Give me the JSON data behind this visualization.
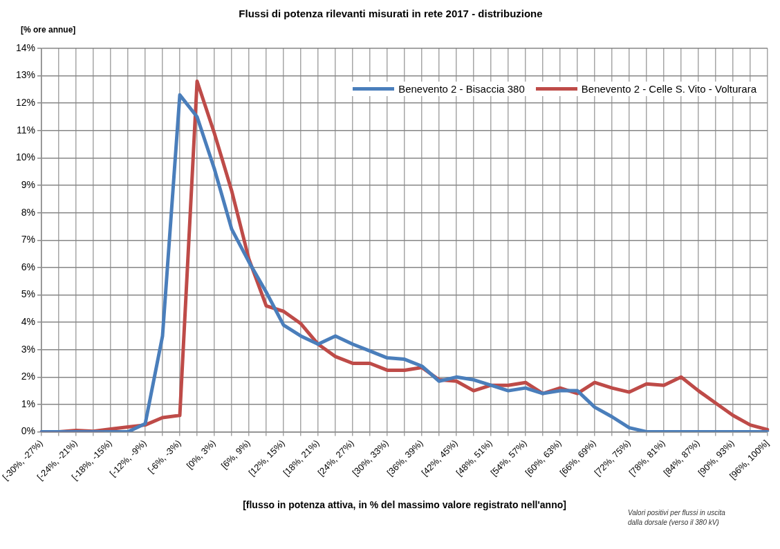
{
  "chart_data": {
    "type": "line",
    "title": "Flussi di potenza rilevanti misurati in rete 2017 - distribuzione",
    "ylabel": "[% ore annue]",
    "xlabel": "[flusso in potenza attiva, in % del massimo valore registrato nell'anno]",
    "annotations": [
      "Valori positivi per flussi in uscita\ndalla dorsale (verso il 380 kV)"
    ],
    "categories": [
      "[-30%, -27%)",
      null,
      "[-24%, -21%)",
      null,
      "[-18%, -15%)",
      null,
      "[-12%, -9%)",
      null,
      "[-6%, -3%)",
      null,
      "[0%, 3%)",
      null,
      "[6%, 9%)",
      null,
      "[12%, 15%)",
      null,
      "[18%, 21%)",
      null,
      "[24%, 27%)",
      null,
      "[30%, 33%)",
      null,
      "[36%, 39%)",
      null,
      "[42%, 45%)",
      null,
      "[48%, 51%)",
      null,
      "[54%, 57%)",
      null,
      "[60%, 63%)",
      null,
      "[66%, 69%)",
      null,
      "[72%, 75%)",
      null,
      "[78%, 81%)",
      null,
      "[84%, 87%)",
      null,
      "[90%, 93%)",
      null,
      "[96%, 100%]"
    ],
    "series": [
      {
        "name": "Benevento 2 - Bisaccia 380",
        "color": "#4a7ebb",
        "values": [
          0,
          0,
          0,
          0,
          0,
          0,
          0.3,
          3.5,
          12.3,
          11.5,
          9.6,
          7.4,
          6.2,
          5.1,
          3.9,
          3.5,
          3.2,
          3.5,
          3.2,
          2.95,
          2.7,
          2.65,
          2.4,
          1.85,
          2.0,
          1.9,
          1.7,
          1.5,
          1.6,
          1.4,
          1.5,
          1.5,
          0.9,
          0.55,
          0.15,
          0,
          0,
          0,
          0,
          0,
          0,
          0,
          0
        ]
      },
      {
        "name": "Benevento 2 - Celle S. Vito - Volturara",
        "color": "#be4b48",
        "values": [
          0,
          0,
          0.05,
          0.02,
          0.1,
          0.18,
          0.25,
          0.52,
          0.6,
          12.8,
          10.9,
          8.8,
          6.3,
          4.6,
          4.4,
          3.95,
          3.2,
          2.75,
          2.5,
          2.5,
          2.25,
          2.25,
          2.35,
          1.9,
          1.85,
          1.5,
          1.7,
          1.7,
          1.8,
          1.4,
          1.6,
          1.4,
          1.8,
          1.6,
          1.45,
          1.75,
          1.7,
          2.0,
          1.5,
          1.05,
          0.6,
          0.25,
          0.08
        ]
      }
    ],
    "ylim": [
      0,
      14
    ],
    "yticks": [
      {
        "value": 0,
        "label": "0%"
      },
      {
        "value": 1,
        "label": "1%"
      },
      {
        "value": 2,
        "label": "2%"
      },
      {
        "value": 3,
        "label": "3%"
      },
      {
        "value": 4,
        "label": "4%"
      },
      {
        "value": 5,
        "label": "5%"
      },
      {
        "value": 6,
        "label": "6%"
      },
      {
        "value": 7,
        "label": "7%"
      },
      {
        "value": 8,
        "label": "8%"
      },
      {
        "value": 9,
        "label": "9%"
      },
      {
        "value": 10,
        "label": "10%"
      },
      {
        "value": 11,
        "label": "11%"
      },
      {
        "value": 12,
        "label": "12%"
      },
      {
        "value": 13,
        "label": "13%"
      },
      {
        "value": 14,
        "label": "14%"
      }
    ],
    "grid": true,
    "legend": "top right",
    "marker": "none",
    "line_style": "solid"
  }
}
